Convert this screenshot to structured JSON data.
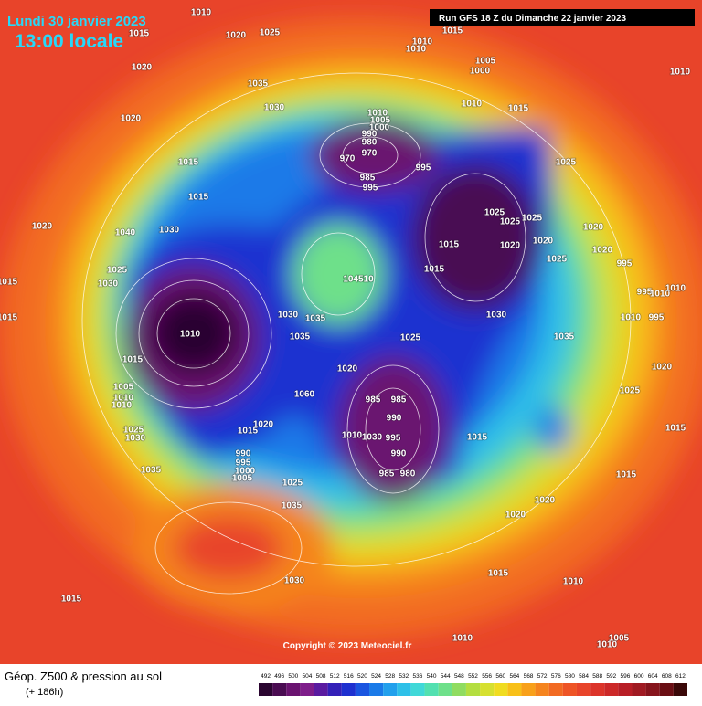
{
  "header": {
    "date": "Lundi 30 janvier 2023",
    "time": "13:00 locale",
    "run": "Run GFS 18 Z du Dimanche 22 janvier 2023"
  },
  "copyright": "Copyright © 2023 Meteociel.fr",
  "footer": {
    "title": "Géop. Z500 & pression au sol",
    "lead": "(+ 186h)"
  },
  "legend": {
    "values": [
      492,
      496,
      500,
      504,
      508,
      512,
      516,
      520,
      524,
      528,
      532,
      536,
      540,
      544,
      548,
      552,
      556,
      560,
      564,
      568,
      572,
      576,
      580,
      584,
      588,
      592,
      596,
      600,
      604,
      608,
      612
    ],
    "colors": [
      "#2a0530",
      "#4a0c52",
      "#6a1370",
      "#7e1d8a",
      "#5a1aa0",
      "#3320b8",
      "#1e30d0",
      "#1a55e0",
      "#1a7ae8",
      "#22a0ec",
      "#2ec0e8",
      "#40d8d8",
      "#52e0b0",
      "#6ee08a",
      "#90dc60",
      "#b4de40",
      "#d6e030",
      "#f0dc20",
      "#f8c018",
      "#f8a01a",
      "#f5841e",
      "#f26a22",
      "#ee5426",
      "#e8442a",
      "#dc342a",
      "#cc2828",
      "#b81e26",
      "#a01a22",
      "#86141c",
      "#6a0e14",
      "#3a0808"
    ]
  },
  "isobars": [
    "1010",
    "1015",
    "1020",
    "1025",
    "1010",
    "1015",
    "1010",
    "1005",
    "1000",
    "1010",
    "1020",
    "1035",
    "1030",
    "1010",
    "1015",
    "1020",
    "1010",
    "1005",
    "1000",
    "990",
    "980",
    "970",
    "970",
    "985",
    "995",
    "995",
    "1025",
    "1015",
    "1015",
    "1020",
    "1040",
    "1030",
    "1025",
    "1025",
    "1025",
    "1020",
    "1020",
    "1015",
    "1020",
    "1020",
    "1025",
    "995",
    "1025",
    "1030",
    "1015",
    "104510",
    "1015",
    "995",
    "1010",
    "1010",
    "1030",
    "1035",
    "1030",
    "1010",
    "995",
    "1015",
    "1010",
    "1035",
    "1025",
    "1035",
    "1015",
    "1020",
    "1020",
    "1005",
    "1060",
    "1010",
    "985",
    "985",
    "1010",
    "1025",
    "990",
    "1025",
    "1030",
    "1020",
    "1015",
    "1010",
    "1030",
    "995",
    "1015",
    "1015",
    "990",
    "995",
    "1000",
    "1005",
    "1035",
    "990",
    "985",
    "980",
    "1015",
    "1025",
    "1035",
    "1020",
    "1020",
    "1015",
    "1010",
    "1030",
    "1015",
    "1010",
    "1010",
    "1005"
  ]
}
